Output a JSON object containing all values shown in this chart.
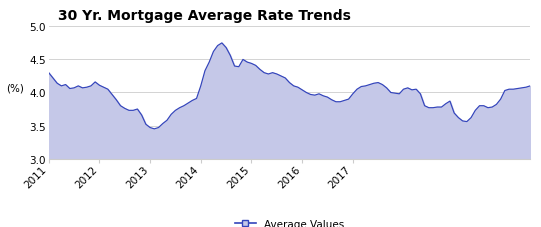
{
  "title": "30 Yr. Mortgage Average Rate Trends",
  "ylabel": "(%)",
  "ylim": [
    3.0,
    5.0
  ],
  "yticks": [
    3.0,
    3.5,
    4.0,
    4.5,
    5.0
  ],
  "legend_label": "Average Values",
  "line_color": "#3344bb",
  "fill_color": "#c5c8e8",
  "background_color": "#ffffff",
  "grid_color": "#cccccc",
  "title_fontsize": 10,
  "axis_fontsize": 7.5,
  "x_tick_labels": [
    "2011",
    "2012",
    "2013",
    "2014",
    "2015",
    "2016",
    "2017"
  ],
  "x_tick_positions": [
    0,
    12,
    24,
    36,
    48,
    60,
    72
  ],
  "values": [
    4.3,
    4.22,
    4.14,
    4.1,
    4.12,
    4.06,
    4.07,
    4.1,
    4.07,
    4.08,
    4.1,
    4.16,
    4.11,
    4.08,
    4.05,
    3.97,
    3.89,
    3.8,
    3.76,
    3.73,
    3.73,
    3.75,
    3.66,
    3.52,
    3.47,
    3.45,
    3.47,
    3.53,
    3.58,
    3.67,
    3.73,
    3.77,
    3.8,
    3.84,
    3.88,
    3.91,
    4.1,
    4.33,
    4.46,
    4.62,
    4.71,
    4.75,
    4.68,
    4.56,
    4.4,
    4.39,
    4.5,
    4.46,
    4.44,
    4.41,
    4.35,
    4.3,
    4.28,
    4.3,
    4.28,
    4.25,
    4.22,
    4.15,
    4.1,
    4.08,
    4.04,
    4.0,
    3.97,
    3.96,
    3.98,
    3.95,
    3.93,
    3.89,
    3.86,
    3.86,
    3.88,
    3.9,
    3.98,
    4.05,
    4.09,
    4.1,
    4.12,
    4.14,
    4.15,
    4.12,
    4.07,
    4.0,
    3.99,
    3.98,
    4.05,
    4.07,
    4.04,
    4.05,
    3.98,
    3.8,
    3.77,
    3.77,
    3.78,
    3.78,
    3.83,
    3.87,
    3.69,
    3.62,
    3.57,
    3.56,
    3.62,
    3.73,
    3.8,
    3.8,
    3.77,
    3.78,
    3.82,
    3.9,
    4.03,
    4.05,
    4.05,
    4.06,
    4.07,
    4.08,
    4.1
  ]
}
